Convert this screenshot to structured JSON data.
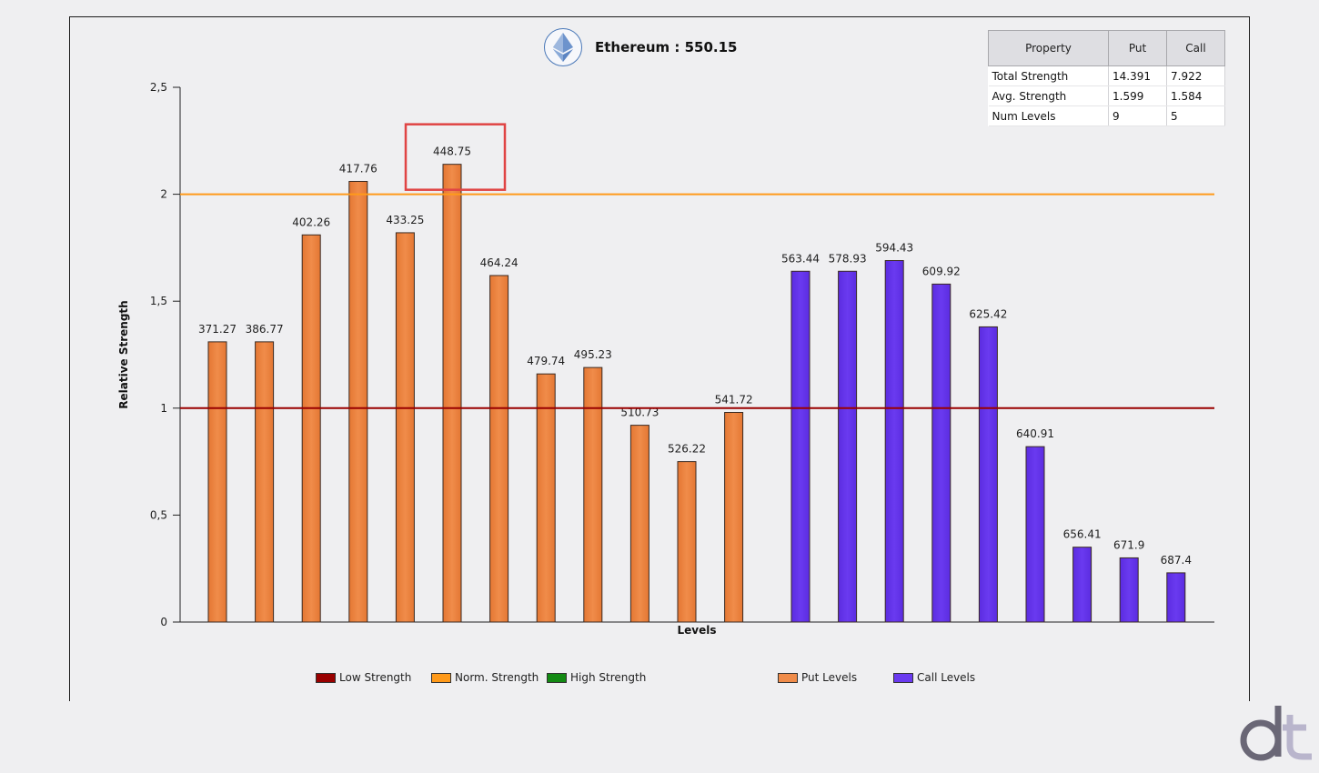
{
  "title": "Ethereum : 550.15",
  "colors": {
    "put": "#f08c4a",
    "call": "#6a3af0",
    "low": "#990000",
    "norm": "#ff9a1a",
    "high": "#138a13",
    "highlight": "#e04444"
  },
  "stats_table": {
    "headers": [
      "Property",
      "Put",
      "Call"
    ],
    "rows": [
      [
        "Total Strength",
        "14.391",
        "7.922"
      ],
      [
        "Avg. Strength",
        "1.599",
        "1.584"
      ],
      [
        "Num Levels",
        "9",
        "5"
      ]
    ]
  },
  "legend": [
    {
      "label": "Low Strength",
      "color": "#990000"
    },
    {
      "label": "Norm. Strength",
      "color": "#ff9a1a"
    },
    {
      "label": "High Strength",
      "color": "#138a13"
    },
    {
      "label": "Put Levels",
      "color": "#f08c4a"
    },
    {
      "label": "Call Levels",
      "color": "#6a3af0"
    }
  ],
  "chart_data": {
    "type": "bar",
    "title": "Ethereum : 550.15",
    "xlabel": "Levels",
    "ylabel": "Relative Strength",
    "ylim": [
      0,
      2.5
    ],
    "yticks": [
      "0",
      "0,5",
      "1",
      "1,5",
      "2",
      "2,5"
    ],
    "yticks_values": [
      0,
      0.5,
      1,
      1.5,
      2,
      2.5
    ],
    "reference_lines": [
      {
        "name": "Low Strength",
        "y": 1.0,
        "color": "#990000"
      },
      {
        "name": "Norm. Strength",
        "y": 2.0,
        "color": "#ff9a1a"
      }
    ],
    "series": [
      {
        "name": "Put Levels",
        "labels": [
          "371.27",
          "386.77",
          "402.26",
          "417.76",
          "433.25",
          "448.75",
          "464.24",
          "479.74",
          "495.23",
          "510.73",
          "526.22",
          "541.72"
        ],
        "values": [
          1.31,
          1.31,
          1.81,
          2.06,
          1.82,
          2.14,
          1.62,
          1.16,
          1.19,
          0.92,
          0.75,
          0.98
        ]
      },
      {
        "name": "Call Levels",
        "labels": [
          "563.44",
          "578.93",
          "594.43",
          "609.92",
          "625.42",
          "640.91",
          "656.41",
          "671.9",
          "687.4"
        ],
        "values": [
          1.64,
          1.64,
          1.69,
          1.58,
          1.38,
          0.82,
          0.35,
          0.3,
          0.23
        ]
      }
    ],
    "highlighted_label": "448.75",
    "grid": false,
    "legend_position": "bottom"
  }
}
